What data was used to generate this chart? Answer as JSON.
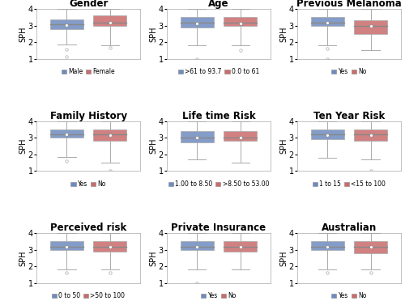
{
  "subplots": [
    {
      "title": "Gender",
      "legend_labels": [
        "Male",
        "Female"
      ],
      "boxes": [
        {
          "q1": 2.8,
          "median": 3.1,
          "q3": 3.35,
          "whislo": 1.85,
          "whishi": 4.0,
          "fliers_low": [
            1.55,
            1.15
          ],
          "mean": 3.05
        },
        {
          "q1": 3.0,
          "median": 3.2,
          "q3": 3.6,
          "whislo": 1.8,
          "whishi": 4.0,
          "fliers_low": [
            1.65
          ],
          "mean": 3.2
        }
      ]
    },
    {
      "title": "Age",
      "legend_labels": [
        ">61 to 93.7",
        "0.0 to 61"
      ],
      "boxes": [
        {
          "q1": 2.9,
          "median": 3.2,
          "q3": 3.5,
          "whislo": 1.8,
          "whishi": 4.0,
          "fliers_low": [
            1.0
          ],
          "mean": 3.15
        },
        {
          "q1": 3.0,
          "median": 3.2,
          "q3": 3.5,
          "whislo": 1.8,
          "whishi": 4.0,
          "fliers_low": [
            1.5
          ],
          "mean": 3.15
        }
      ]
    },
    {
      "title": "Previous Melanoma",
      "legend_labels": [
        "Yes",
        "No"
      ],
      "boxes": [
        {
          "q1": 3.0,
          "median": 3.2,
          "q3": 3.5,
          "whislo": 1.8,
          "whishi": 4.0,
          "fliers_low": [
            1.6,
            1.0
          ],
          "mean": 3.2
        },
        {
          "q1": 2.5,
          "median": 3.0,
          "q3": 3.3,
          "whislo": 1.5,
          "whishi": 4.0,
          "fliers_low": [],
          "mean": 3.0
        }
      ]
    },
    {
      "title": "Family History",
      "legend_labels": [
        "Yes",
        "No"
      ],
      "boxes": [
        {
          "q1": 3.0,
          "median": 3.2,
          "q3": 3.5,
          "whislo": 1.85,
          "whishi": 4.0,
          "fliers_low": [
            1.6
          ],
          "mean": 3.2
        },
        {
          "q1": 2.8,
          "median": 3.2,
          "q3": 3.5,
          "whislo": 1.5,
          "whishi": 4.0,
          "fliers_low": [
            1.0
          ],
          "mean": 3.15
        }
      ]
    },
    {
      "title": "Life time Risk",
      "legend_labels": [
        "1.00 to 8.50",
        ">8.50 to 53.00"
      ],
      "boxes": [
        {
          "q1": 2.7,
          "median": 3.0,
          "q3": 3.4,
          "whislo": 1.7,
          "whishi": 4.0,
          "fliers_low": [],
          "mean": 3.0
        },
        {
          "q1": 2.8,
          "median": 3.0,
          "q3": 3.4,
          "whislo": 1.5,
          "whishi": 4.0,
          "fliers_low": [],
          "mean": 3.0
        }
      ]
    },
    {
      "title": "Ten Year Risk",
      "legend_labels": [
        "1 to 15",
        "<15 to 100"
      ],
      "boxes": [
        {
          "q1": 2.9,
          "median": 3.2,
          "q3": 3.5,
          "whislo": 1.8,
          "whishi": 4.0,
          "fliers_low": [],
          "mean": 3.15
        },
        {
          "q1": 2.8,
          "median": 3.2,
          "q3": 3.5,
          "whislo": 1.7,
          "whishi": 4.0,
          "fliers_low": [
            1.0
          ],
          "mean": 3.15
        }
      ]
    },
    {
      "title": "Perceived risk",
      "legend_labels": [
        "0 to 50",
        ">50 to 100"
      ],
      "boxes": [
        {
          "q1": 3.0,
          "median": 3.2,
          "q3": 3.5,
          "whislo": 1.8,
          "whishi": 4.0,
          "fliers_low": [
            1.6
          ],
          "mean": 3.2
        },
        {
          "q1": 2.9,
          "median": 3.2,
          "q3": 3.5,
          "whislo": 1.8,
          "whishi": 4.0,
          "fliers_low": [
            1.6
          ],
          "mean": 3.2
        }
      ]
    },
    {
      "title": "Private Insurance",
      "legend_labels": [
        "Yes",
        "No"
      ],
      "boxes": [
        {
          "q1": 3.0,
          "median": 3.2,
          "q3": 3.5,
          "whislo": 1.8,
          "whishi": 4.0,
          "fliers_low": [
            1.0
          ],
          "mean": 3.2
        },
        {
          "q1": 2.9,
          "median": 3.2,
          "q3": 3.5,
          "whislo": 1.8,
          "whishi": 4.0,
          "fliers_low": [],
          "mean": 3.2
        }
      ]
    },
    {
      "title": "Australian",
      "legend_labels": [
        "Yes",
        "No"
      ],
      "boxes": [
        {
          "q1": 3.0,
          "median": 3.2,
          "q3": 3.5,
          "whislo": 1.8,
          "whishi": 4.0,
          "fliers_low": [
            1.6
          ],
          "mean": 3.2
        },
        {
          "q1": 2.8,
          "median": 3.2,
          "q3": 3.5,
          "whislo": 1.8,
          "whishi": 4.0,
          "fliers_low": [
            1.6
          ],
          "mean": 3.2
        }
      ]
    }
  ],
  "colors": [
    "#6e8bbf",
    "#c96b6b"
  ],
  "ylabel": "SPH",
  "ylim": [
    1,
    4
  ],
  "yticks": [
    1,
    2,
    3,
    4
  ],
  "background_color": "#ffffff",
  "title_fontsize": 8.5,
  "label_fontsize": 7,
  "legend_fontsize": 5.5,
  "ylabel_fontsize": 7,
  "box_width": 0.38,
  "cap_ratio": 0.55
}
